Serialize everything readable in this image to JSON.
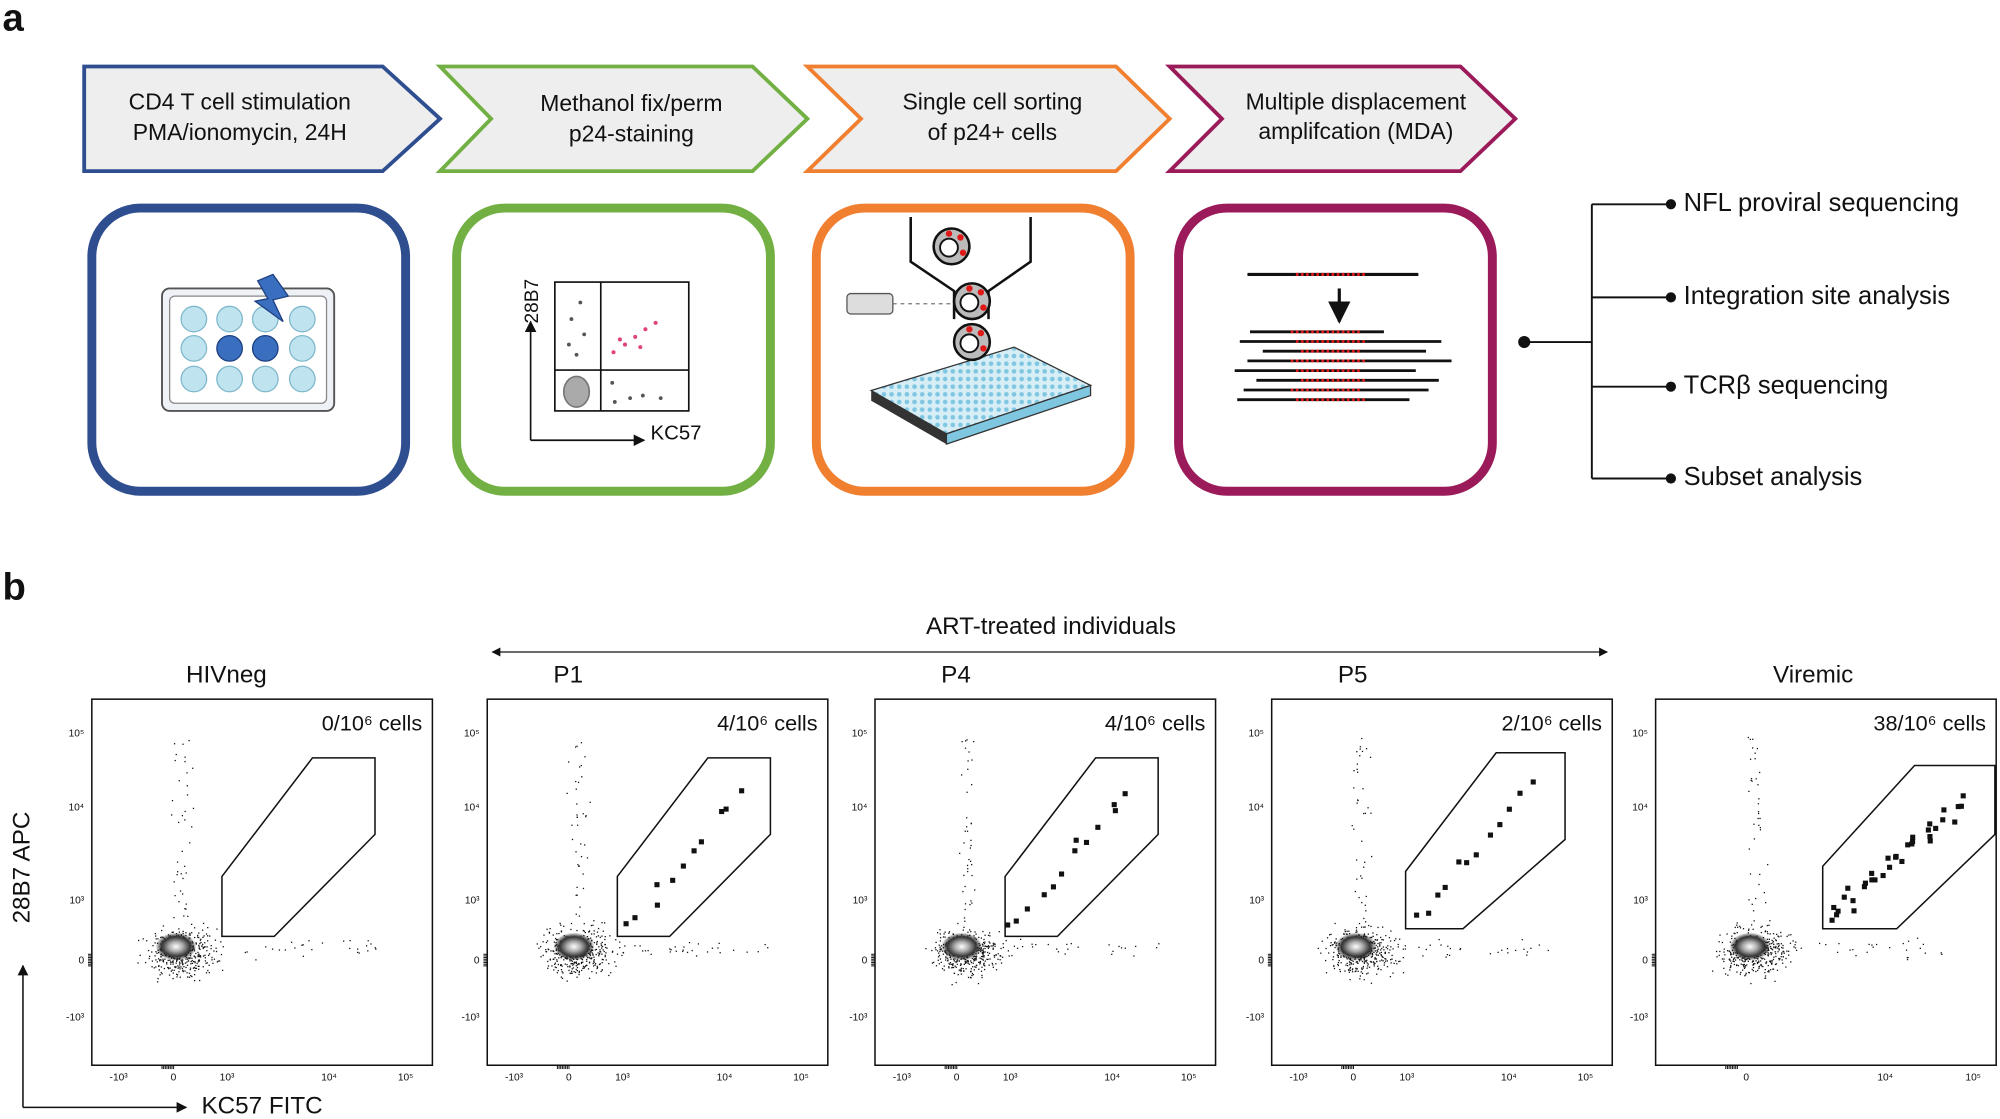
{
  "panel_a": {
    "label": "a",
    "steps": [
      {
        "lines": [
          "CD4 T cell stimulation",
          "PMA/ionomycin, 24H"
        ]
      },
      {
        "lines": [
          "Methanol fix/perm",
          "p24-staining"
        ]
      },
      {
        "lines": [
          "Single cell sorting",
          "of p24+ cells"
        ]
      },
      {
        "lines": [
          "Multiple displacement",
          "amplifcation (MDA)"
        ]
      }
    ],
    "gating_axes": {
      "y": "28B7",
      "x": "KC57"
    },
    "outputs": [
      "NFL proviral sequencing",
      "Integration site analysis",
      "TCRβ sequencing",
      "Subset analysis"
    ]
  },
  "panel_b": {
    "label": "b",
    "group_label": "ART-treated individuals",
    "y_axis_label": "28B7 APC",
    "x_axis_label": "KC57 FITC",
    "y_ticks": [
      "10⁵",
      "10⁴",
      "10³",
      "0",
      "-10³"
    ],
    "plots": [
      {
        "name": "HIVneg",
        "count": "0/10⁶ cells",
        "x_ticks": [
          "-10³",
          "0",
          "10³",
          "10⁴",
          "10⁵"
        ]
      },
      {
        "name": "P1",
        "count": "4/10⁶ cells",
        "x_ticks": [
          "-10³",
          "0",
          "10³",
          "10⁴",
          "10⁵"
        ]
      },
      {
        "name": "P4",
        "count": "4/10⁶ cells",
        "x_ticks": [
          "-10³",
          "0",
          "10³",
          "10⁴",
          "10⁵"
        ]
      },
      {
        "name": "P5",
        "count": "2/10⁶ cells",
        "x_ticks": [
          "-10³",
          "0",
          "10³",
          "10⁴",
          "10⁵"
        ]
      },
      {
        "name": "Viremic",
        "count": "38/10⁶ cells",
        "x_ticks": [
          "0",
          "10⁴",
          "10⁵"
        ]
      }
    ]
  }
}
